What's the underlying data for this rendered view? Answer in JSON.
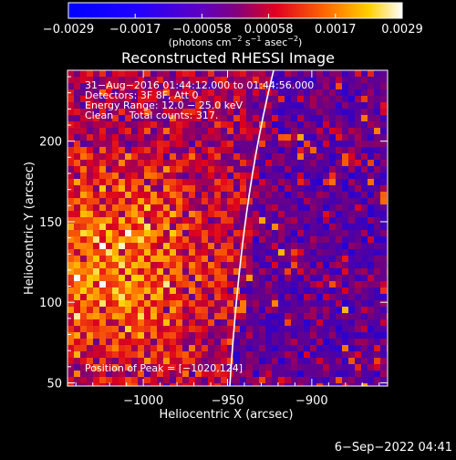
{
  "colorbar": {
    "ticks": [
      "−0.0029",
      "−0.0017",
      "−0.00058",
      "0.00058",
      "0.0017",
      "0.0029"
    ],
    "units_parts": [
      "(photons cm",
      "−2",
      " s",
      "−1",
      " asec",
      "−2",
      ")"
    ]
  },
  "plot": {
    "title": "Reconstructed RHESSI Image",
    "info_lines": [
      "31−Aug−2016 01:44:12.000 to 01:44:56.000",
      "Detectors: 3F 8F, Att 0",
      "Energy Range: 12.0 − 25.0 keV",
      "Clean     Total counts: 317."
    ],
    "peak_text": "Position of Peak = [−1020,124]",
    "xlabel": "Heliocentric X (arcsec)",
    "ylabel": "Heliocentric Y (arcsec)",
    "xticks": [
      "−1000",
      "−950",
      "−900"
    ],
    "yticks": [
      "50",
      "100",
      "150",
      "200"
    ],
    "colors": {
      "limb": "#ffffff",
      "cmap_low": "#0000ff",
      "cmap_mid": "#8000a0",
      "cmap_high": "#ffffff"
    }
  },
  "footer": {
    "date": "6−Sep−2022 04:41"
  },
  "chart_data": {
    "type": "heatmap",
    "title": "Reconstructed RHESSI Image",
    "xlabel": "Heliocentric X (arcsec)",
    "ylabel": "Heliocentric Y (arcsec)",
    "xlim": [
      -1045,
      -855
    ],
    "ylim": [
      48,
      244
    ],
    "colorbar_range": [
      -0.0029,
      0.0029
    ],
    "peak": [
      -1020,
      124
    ],
    "grid": false,
    "legend": "none"
  }
}
